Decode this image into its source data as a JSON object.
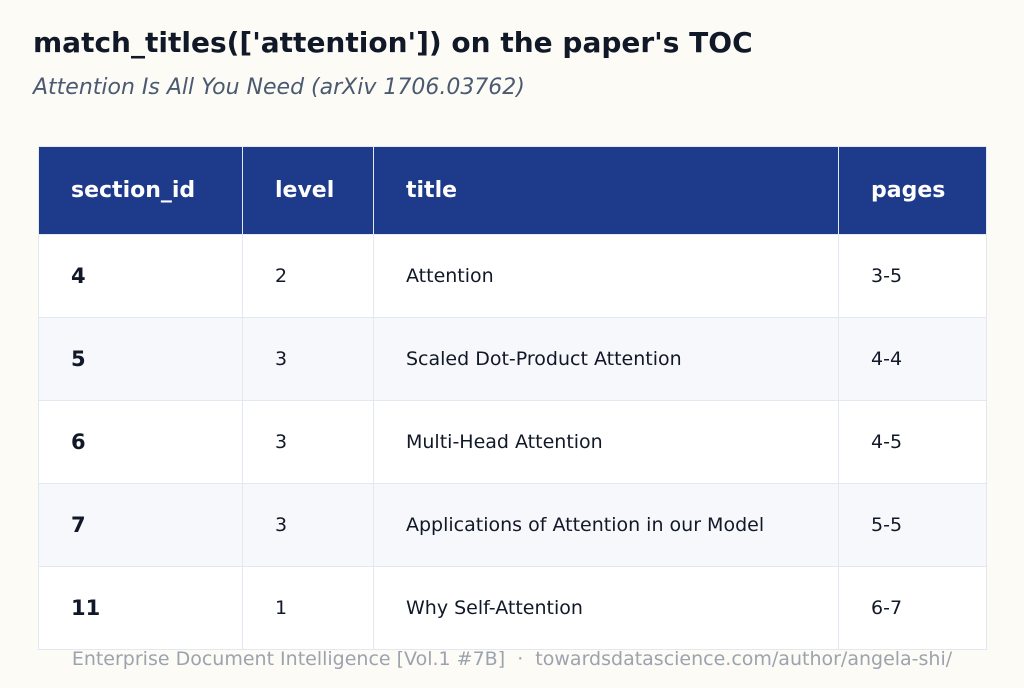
{
  "header": {
    "title": "match_titles(['attention']) on the paper's TOC",
    "subtitle": "Attention Is All You Need (arXiv 1706.03762)"
  },
  "table": {
    "columns": [
      "section_id",
      "level",
      "title",
      "pages"
    ],
    "rows": [
      [
        "4",
        "2",
        "Attention",
        "3-5"
      ],
      [
        "5",
        "3",
        "Scaled Dot-Product Attention",
        "4-4"
      ],
      [
        "6",
        "3",
        "Multi-Head Attention",
        "4-5"
      ],
      [
        "7",
        "3",
        "Applications of Attention in our Model",
        "5-5"
      ],
      [
        "11",
        "1",
        "Why Self-Attention",
        "6-7"
      ]
    ]
  },
  "footer": "Enterprise Document Intelligence [Vol.1 #7B]  ·  towardsdatascience.com/author/angela-shi/"
}
